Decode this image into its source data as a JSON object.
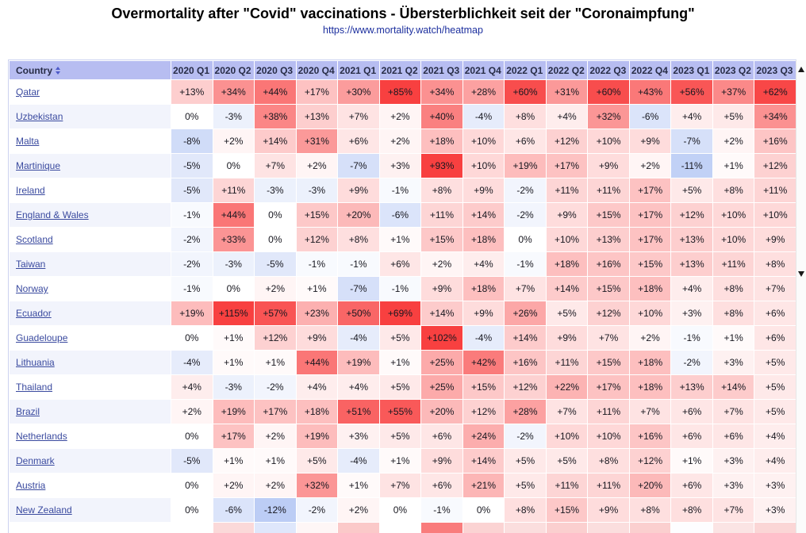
{
  "page": {
    "title": "Overmortality after \"Covid\" vaccinations - Übersterblichkeit seit der \"Coronaimpfung\"",
    "link": "https://www.mortality.watch/heatmap"
  },
  "chart_data": {
    "type": "heatmap",
    "title": "Overmortality after \"Covid\" vaccinations - Übersterblichkeit seit der \"Coronaimpfung\"",
    "row_header": "Country",
    "columns": [
      "2020 Q1",
      "2020 Q2",
      "2020 Q3",
      "2020 Q4",
      "2021 Q1",
      "2021 Q2",
      "2021 Q3",
      "2021 Q4",
      "2022 Q1",
      "2022 Q2",
      "2022 Q3",
      "2022 Q4",
      "2023 Q1",
      "2023 Q2",
      "2023 Q3"
    ],
    "value_format": "signed_percent",
    "rows": [
      {
        "country": "Qatar",
        "values": [
          13,
          34,
          44,
          17,
          30,
          85,
          34,
          28,
          60,
          31,
          60,
          43,
          56,
          37,
          62
        ]
      },
      {
        "country": "Uzbekistan",
        "values": [
          0,
          -3,
          38,
          13,
          7,
          2,
          40,
          -4,
          8,
          4,
          32,
          -6,
          4,
          5,
          34
        ]
      },
      {
        "country": "Malta",
        "values": [
          -8,
          2,
          14,
          31,
          6,
          2,
          18,
          10,
          6,
          12,
          10,
          9,
          -7,
          2,
          16
        ]
      },
      {
        "country": "Martinique",
        "values": [
          -5,
          0,
          7,
          2,
          -7,
          3,
          93,
          10,
          19,
          17,
          9,
          2,
          -11,
          1,
          12
        ]
      },
      {
        "country": "Ireland",
        "values": [
          -5,
          11,
          -3,
          -3,
          9,
          -1,
          8,
          9,
          -2,
          11,
          11,
          17,
          5,
          8,
          11
        ]
      },
      {
        "country": "England & Wales",
        "values": [
          -1,
          44,
          0,
          15,
          20,
          -6,
          11,
          14,
          -2,
          9,
          15,
          17,
          12,
          10,
          10
        ]
      },
      {
        "country": "Scotland",
        "values": [
          -2,
          33,
          0,
          12,
          8,
          1,
          15,
          18,
          0,
          10,
          13,
          17,
          13,
          10,
          9
        ]
      },
      {
        "country": "Taiwan",
        "values": [
          -2,
          -3,
          -5,
          -1,
          -1,
          6,
          2,
          4,
          -1,
          18,
          16,
          15,
          13,
          11,
          8
        ]
      },
      {
        "country": "Norway",
        "values": [
          -1,
          0,
          2,
          1,
          -7,
          -1,
          9,
          18,
          7,
          14,
          15,
          18,
          4,
          8,
          7
        ]
      },
      {
        "country": "Ecuador",
        "values": [
          19,
          115,
          57,
          23,
          50,
          69,
          14,
          9,
          26,
          5,
          12,
          10,
          3,
          8,
          6
        ]
      },
      {
        "country": "Guadeloupe",
        "values": [
          0,
          1,
          12,
          9,
          -4,
          5,
          102,
          -4,
          14,
          9,
          7,
          2,
          -1,
          1,
          6
        ]
      },
      {
        "country": "Lithuania",
        "values": [
          -4,
          1,
          1,
          44,
          19,
          1,
          25,
          42,
          16,
          11,
          15,
          18,
          -2,
          3,
          5
        ]
      },
      {
        "country": "Thailand",
        "values": [
          4,
          -3,
          -2,
          4,
          4,
          5,
          25,
          15,
          12,
          22,
          17,
          18,
          13,
          14,
          5
        ]
      },
      {
        "country": "Brazil",
        "values": [
          2,
          19,
          17,
          18,
          51,
          55,
          20,
          12,
          28,
          7,
          11,
          7,
          6,
          7,
          5
        ]
      },
      {
        "country": "Netherlands",
        "values": [
          0,
          17,
          2,
          19,
          3,
          5,
          6,
          24,
          -2,
          10,
          10,
          16,
          6,
          6,
          4
        ]
      },
      {
        "country": "Denmark",
        "values": [
          -5,
          1,
          1,
          5,
          -4,
          1,
          9,
          14,
          5,
          5,
          8,
          12,
          1,
          3,
          4
        ]
      },
      {
        "country": "Austria",
        "values": [
          0,
          2,
          2,
          32,
          1,
          7,
          6,
          21,
          5,
          11,
          11,
          20,
          6,
          3,
          3
        ]
      },
      {
        "country": "New Zealand",
        "values": [
          0,
          -6,
          -12,
          -2,
          2,
          0,
          -1,
          0,
          8,
          15,
          9,
          8,
          8,
          7,
          3
        ]
      }
    ],
    "partial_row_cell_colors": [
      "#ffffff",
      "#fbd9d9",
      "#dfe7fb",
      "#fef6f6",
      "#fbc9c9",
      "#ffffff",
      "#f97c7c",
      "#fbd3d3",
      "#fbdede",
      "#fbcfcf",
      "#fbdede",
      "#fbcfcf",
      "#fdfdff",
      "#fbe4e4",
      "#fbd6d6"
    ],
    "colors": {
      "header_bg": "#b7bdf1",
      "positive_base": "#f84040",
      "negative_base": "#b7c9f4",
      "link": "#3a4a9f",
      "alt_row": "#f2f4fc"
    }
  }
}
